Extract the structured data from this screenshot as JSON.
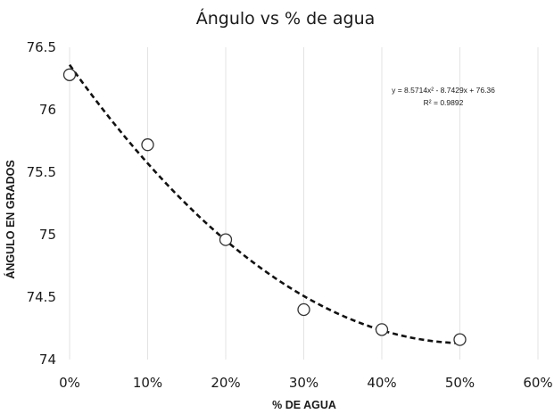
{
  "chart_data": {
    "type": "scatter",
    "title": "Ángulo vs % de agua",
    "xlabel": "% DE AGUA",
    "ylabel": "ÁNGULO EN GRADOS",
    "x_ticks": [
      "0%",
      "10%",
      "20%",
      "30%",
      "40%",
      "50%",
      "60%"
    ],
    "y_ticks": [
      "74",
      "74.5",
      "75",
      "75.5",
      "76",
      "76.5"
    ],
    "xlim": [
      0,
      0.6
    ],
    "ylim": [
      74,
      76.5
    ],
    "grid": "vertical",
    "points": [
      {
        "x": 0.0,
        "y": 76.28
      },
      {
        "x": 0.1,
        "y": 75.72
      },
      {
        "x": 0.2,
        "y": 74.96
      },
      {
        "x": 0.3,
        "y": 74.4
      },
      {
        "x": 0.4,
        "y": 74.24
      },
      {
        "x": 0.5,
        "y": 74.16
      }
    ],
    "trendline": {
      "type": "polynomial",
      "coefficients": [
        8.5714,
        -8.7429,
        76.36
      ],
      "x_range": [
        0,
        0.5
      ],
      "style": "dashed",
      "equation": "y = 8.5714x² - 8.7429x + 76.36",
      "r_squared": "R² = 0.9892"
    }
  }
}
